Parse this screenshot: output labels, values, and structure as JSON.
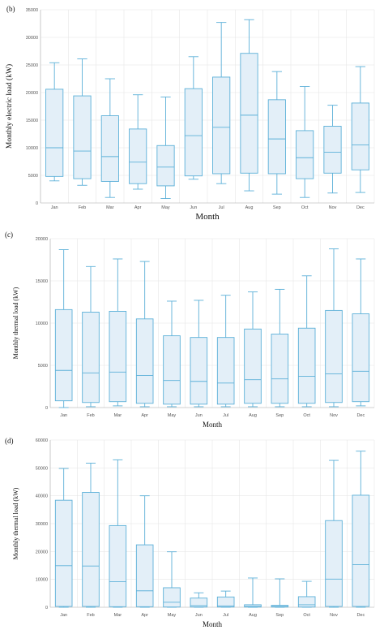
{
  "chart_data": [
    {
      "type": "box",
      "panel_label": "(b)",
      "xlabel": "Month",
      "ylabel": "Monthly electric load (kW)",
      "ylim": [
        0,
        35000
      ],
      "yticks": [
        0,
        5000,
        10000,
        15000,
        20000,
        25000,
        30000,
        35000
      ],
      "categories": [
        "Jan",
        "Feb",
        "Mar",
        "Apr",
        "May",
        "Jun",
        "Jul",
        "Aug",
        "Sep",
        "Oct",
        "Nov",
        "Dec"
      ],
      "boxes": [
        {
          "min": 4000,
          "q1": 4800,
          "median": 10000,
          "q3": 20600,
          "max": 25400
        },
        {
          "min": 3200,
          "q1": 4400,
          "median": 9400,
          "q3": 19400,
          "max": 26100
        },
        {
          "min": 1000,
          "q1": 3900,
          "median": 8400,
          "q3": 15800,
          "max": 22500
        },
        {
          "min": 2500,
          "q1": 3500,
          "median": 7400,
          "q3": 13400,
          "max": 19600
        },
        {
          "min": 800,
          "q1": 3100,
          "median": 6500,
          "q3": 10400,
          "max": 19200
        },
        {
          "min": 4300,
          "q1": 4900,
          "median": 12200,
          "q3": 20700,
          "max": 26500
        },
        {
          "min": 3500,
          "q1": 5300,
          "median": 13700,
          "q3": 22800,
          "max": 32700
        },
        {
          "min": 2200,
          "q1": 5400,
          "median": 15900,
          "q3": 27100,
          "max": 33200
        },
        {
          "min": 1600,
          "q1": 5300,
          "median": 11600,
          "q3": 18700,
          "max": 23800
        },
        {
          "min": 1000,
          "q1": 4400,
          "median": 8200,
          "q3": 13100,
          "max": 21100
        },
        {
          "min": 1800,
          "q1": 5400,
          "median": 9200,
          "q3": 13900,
          "max": 17700
        },
        {
          "min": 1900,
          "q1": 6000,
          "median": 10500,
          "q3": 18100,
          "max": 24700
        }
      ]
    },
    {
      "type": "box",
      "panel_label": "(c)",
      "xlabel": "Month",
      "ylabel": "Monthly thermal load (kW)",
      "ylim": [
        0,
        20000
      ],
      "yticks": [
        0,
        5000,
        10000,
        15000,
        20000
      ],
      "categories": [
        "Jan",
        "Feb",
        "Mar",
        "Apr",
        "May",
        "Jun",
        "Jul",
        "Aug",
        "Sep",
        "Oct",
        "Nov",
        "Dec"
      ],
      "boxes": [
        {
          "min": 0,
          "q1": 800,
          "median": 4400,
          "q3": 11600,
          "max": 18700
        },
        {
          "min": 100,
          "q1": 600,
          "median": 4100,
          "q3": 11300,
          "max": 16700
        },
        {
          "min": 200,
          "q1": 700,
          "median": 4200,
          "q3": 11400,
          "max": 17600
        },
        {
          "min": 100,
          "q1": 500,
          "median": 3800,
          "q3": 10500,
          "max": 17300
        },
        {
          "min": 100,
          "q1": 400,
          "median": 3200,
          "q3": 8500,
          "max": 12600
        },
        {
          "min": 100,
          "q1": 400,
          "median": 3100,
          "q3": 8300,
          "max": 12700
        },
        {
          "min": 100,
          "q1": 400,
          "median": 2900,
          "q3": 8300,
          "max": 13300
        },
        {
          "min": 100,
          "q1": 500,
          "median": 3300,
          "q3": 9300,
          "max": 13700
        },
        {
          "min": 100,
          "q1": 500,
          "median": 3400,
          "q3": 8700,
          "max": 14000
        },
        {
          "min": 100,
          "q1": 500,
          "median": 3700,
          "q3": 9400,
          "max": 15600
        },
        {
          "min": 100,
          "q1": 600,
          "median": 4000,
          "q3": 11500,
          "max": 18800
        },
        {
          "min": 200,
          "q1": 700,
          "median": 4300,
          "q3": 11100,
          "max": 17600
        }
      ]
    },
    {
      "type": "box",
      "panel_label": "(d)",
      "xlabel": "Month",
      "ylabel": "Monthly thermal load (kW)",
      "ylim": [
        0,
        60000
      ],
      "yticks": [
        0,
        10000,
        20000,
        30000,
        40000,
        50000,
        60000
      ],
      "categories": [
        "Jan",
        "Feb",
        "Mar",
        "Apr",
        "May",
        "Jun",
        "Jul",
        "Aug",
        "Sep",
        "Oct",
        "Nov",
        "Dec"
      ],
      "boxes": [
        {
          "min": 0,
          "q1": 300,
          "median": 14900,
          "q3": 38400,
          "max": 49800
        },
        {
          "min": 0,
          "q1": 300,
          "median": 14800,
          "q3": 41200,
          "max": 51700
        },
        {
          "min": 0,
          "q1": 200,
          "median": 9200,
          "q3": 29300,
          "max": 52900
        },
        {
          "min": 0,
          "q1": 200,
          "median": 5900,
          "q3": 22400,
          "max": 40000
        },
        {
          "min": 0,
          "q1": 100,
          "median": 1800,
          "q3": 7000,
          "max": 19900
        },
        {
          "min": 0,
          "q1": 100,
          "median": 600,
          "q3": 3300,
          "max": 5200
        },
        {
          "min": 0,
          "q1": 100,
          "median": 500,
          "q3": 3700,
          "max": 5800
        },
        {
          "min": 0,
          "q1": 100,
          "median": 300,
          "q3": 900,
          "max": 10500
        },
        {
          "min": 0,
          "q1": 100,
          "median": 300,
          "q3": 700,
          "max": 10200
        },
        {
          "min": 0,
          "q1": 100,
          "median": 900,
          "q3": 3800,
          "max": 9300
        },
        {
          "min": 0,
          "q1": 300,
          "median": 10100,
          "q3": 31100,
          "max": 52700
        },
        {
          "min": 0,
          "q1": 300,
          "median": 15300,
          "q3": 40200,
          "max": 56000
        }
      ]
    }
  ]
}
